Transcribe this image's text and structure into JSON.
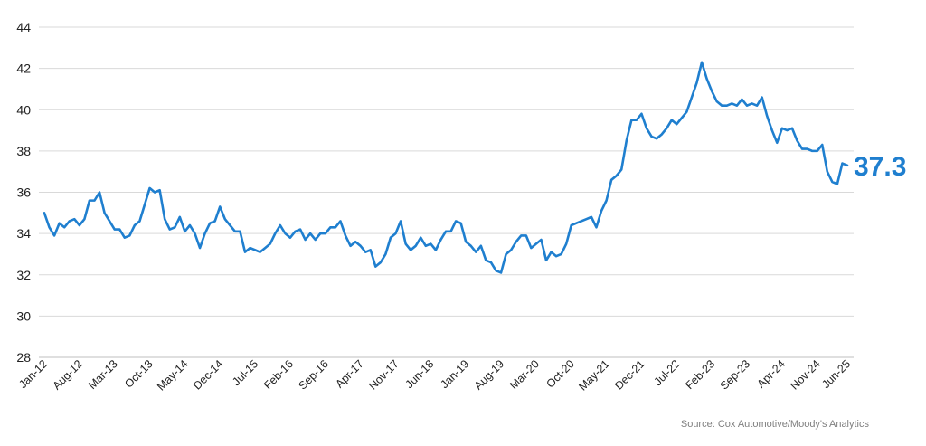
{
  "chart_data": {
    "type": "line",
    "title": "",
    "xlabel": "",
    "ylabel": "",
    "ylim": [
      28,
      44
    ],
    "y_ticks": [
      28,
      30,
      32,
      34,
      36,
      38,
      40,
      42,
      44
    ],
    "x_tick_labels": [
      "Jan-12",
      "Aug-12",
      "Mar-13",
      "Oct-13",
      "May-14",
      "Dec-14",
      "Jul-15",
      "Feb-16",
      "Sep-16",
      "Apr-17",
      "Nov-17",
      "Jun-18",
      "Jan-19",
      "Aug-19",
      "Mar-20",
      "Oct-20",
      "May-21",
      "Dec-21",
      "Jul-22",
      "Feb-23",
      "Sep-23",
      "Apr-24",
      "Nov-24",
      "Jun-25"
    ],
    "grid": true,
    "legend": "none",
    "line_color": "#1f7fcf",
    "end_label": "37.3",
    "start": "Jan-12",
    "series": [
      {
        "values": [
          35.0,
          34.3,
          33.9,
          34.5,
          34.3,
          34.6,
          34.7,
          34.4,
          34.7,
          35.6,
          35.6,
          36.0,
          35.0,
          34.6,
          34.2,
          34.2,
          33.8,
          33.9,
          34.4,
          34.6,
          35.4,
          36.2,
          36.0,
          36.1,
          34.7,
          34.2,
          34.3,
          34.8,
          34.1,
          34.4,
          34.0,
          33.3,
          34.0,
          34.5,
          34.6,
          35.3,
          34.7,
          34.4,
          34.1,
          34.1,
          33.1,
          33.3,
          33.2,
          33.1,
          33.3,
          33.5,
          34.0,
          34.4,
          34.0,
          33.8,
          34.1,
          34.2,
          33.7,
          34.0,
          33.7,
          34.0,
          34.0,
          34.3,
          34.3,
          34.6,
          33.9,
          33.4,
          33.6,
          33.4,
          33.1,
          33.2,
          32.4,
          32.6,
          33.0,
          33.8,
          34.0,
          34.6,
          33.5,
          33.2,
          33.4,
          33.8,
          33.4,
          33.5,
          33.2,
          33.7,
          34.1,
          34.1,
          34.6,
          34.5,
          33.6,
          33.4,
          33.1,
          33.4,
          32.7,
          32.6,
          32.2,
          32.1,
          33.0,
          33.2,
          33.6,
          33.9,
          33.9,
          33.3,
          33.5,
          33.7,
          32.7,
          33.1,
          32.9,
          33.0,
          33.5,
          34.4,
          34.5,
          34.6,
          34.7,
          34.8,
          34.3,
          35.1,
          35.6,
          36.6,
          36.8,
          37.1,
          38.5,
          39.5,
          39.5,
          39.8,
          39.1,
          38.7,
          38.6,
          38.8,
          39.1,
          39.5,
          39.3,
          39.6,
          39.9,
          40.6,
          41.3,
          42.3,
          41.5,
          40.9,
          40.4,
          40.2,
          40.2,
          40.3,
          40.2,
          40.5,
          40.2,
          40.3,
          40.2,
          40.6,
          39.7,
          39.0,
          38.4,
          39.1,
          39.0,
          39.1,
          38.5,
          38.1,
          38.1,
          38.0,
          38.0,
          38.3,
          37.0,
          36.5,
          36.4,
          37.4,
          37.3
        ]
      }
    ]
  },
  "source_text": "Source: Cox Automotive/Moody's Analytics"
}
